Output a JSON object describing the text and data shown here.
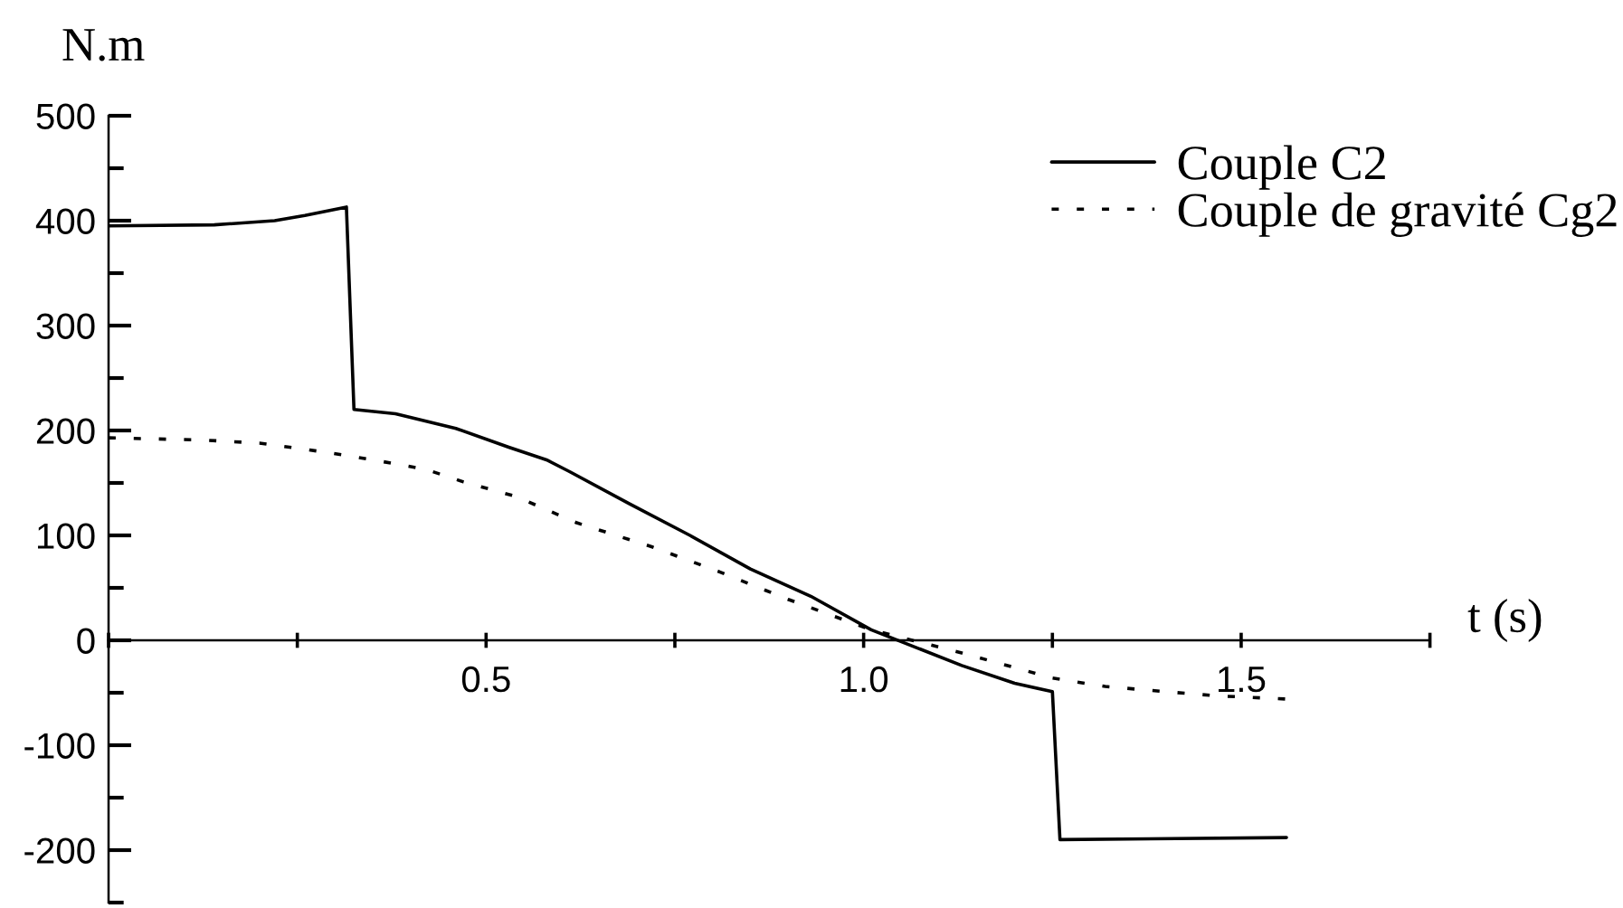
{
  "chart_data": {
    "type": "line",
    "xlabel": "t (s)",
    "ylabel": "N.m",
    "xlim": [
      0,
      1.75
    ],
    "ylim": [
      -250,
      500
    ],
    "xticks": [
      {
        "value": 0,
        "label": null
      },
      {
        "value": 0.25,
        "label": null
      },
      0.5,
      {
        "value": 0.75,
        "label": null
      },
      {
        "value": 1.0,
        "label": "1.0"
      },
      {
        "value": 1.25,
        "label": null
      },
      1.5,
      {
        "value": 1.75,
        "label": null
      }
    ],
    "yticks": [
      {
        "value": -250,
        "label": null
      },
      -200,
      {
        "value": -150,
        "label": null
      },
      -100,
      {
        "value": -50,
        "label": null
      },
      0,
      {
        "value": 50,
        "label": null
      },
      100,
      {
        "value": 150,
        "label": null
      },
      200,
      {
        "value": 250,
        "label": null
      },
      300,
      {
        "value": 350,
        "label": null
      },
      400,
      {
        "value": 450,
        "label": null
      },
      500
    ],
    "legend": "top right",
    "series": [
      {
        "name": "Couple C2",
        "color": "#000000",
        "line_style": "solid",
        "x": [
          0,
          0.14,
          0.22,
          0.26,
          0.315,
          0.325,
          0.38,
          0.46,
          0.53,
          0.58,
          0.61,
          0.69,
          0.77,
          0.85,
          0.93,
          1.01,
          1.13,
          1.2,
          1.25,
          1.26,
          1.56
        ],
        "values": [
          395,
          396,
          400,
          405,
          413,
          220,
          216,
          202,
          184,
          172,
          161,
          130,
          100,
          68,
          42,
          10,
          -24,
          -41,
          -49,
          -190,
          -188
        ]
      },
      {
        "name": "Couple de gravité Cg2",
        "color": "#000000",
        "line_style": "dashed",
        "x": [
          0,
          0.12,
          0.2,
          0.29,
          0.35,
          0.42,
          0.47,
          0.54,
          0.62,
          0.72,
          0.81,
          0.9,
          1.01,
          1.13,
          1.25,
          1.32,
          1.4,
          1.47,
          1.56
        ],
        "values": [
          193,
          191,
          188,
          179,
          172,
          163,
          151,
          137,
          112,
          89,
          65,
          39,
          10,
          -12,
          -36,
          -44,
          -49,
          -53,
          -56
        ]
      }
    ]
  }
}
